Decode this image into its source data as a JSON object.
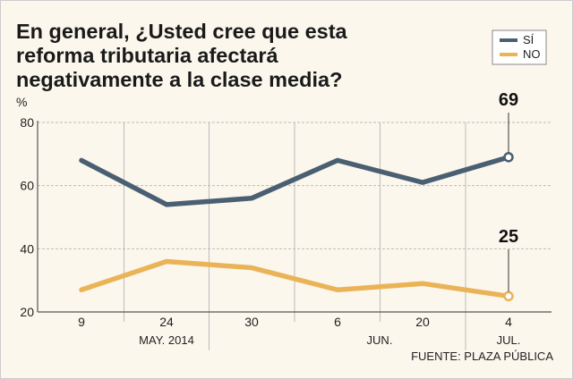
{
  "colors": {
    "si": "#4a5f72",
    "no": "#ebb357",
    "background": "#fbf7ed",
    "grid": "#bbbbbb"
  },
  "chart_data": {
    "type": "line",
    "title": [
      "En general, ¿Usted cree que esta",
      "reforma tributaria afectará",
      "negativamente a la clase media?"
    ],
    "ylabel": "%",
    "ylim": [
      20,
      80
    ],
    "yticks": [
      80,
      60,
      40,
      20
    ],
    "x_labels": [
      "9",
      "24",
      "30",
      "6",
      "20",
      "4"
    ],
    "month_labels": [
      "MAY. 2014",
      "JUN.",
      "JUL."
    ],
    "series": [
      {
        "name": "SÍ",
        "values": [
          68,
          54,
          56,
          68,
          61,
          69
        ],
        "end_label": "69"
      },
      {
        "name": "NO",
        "values": [
          27,
          36,
          34,
          27,
          29,
          25
        ],
        "end_label": "25"
      }
    ],
    "legend_position": "top-right",
    "grid": true
  },
  "source": "FUENTE: PLAZA PÚBLICA"
}
